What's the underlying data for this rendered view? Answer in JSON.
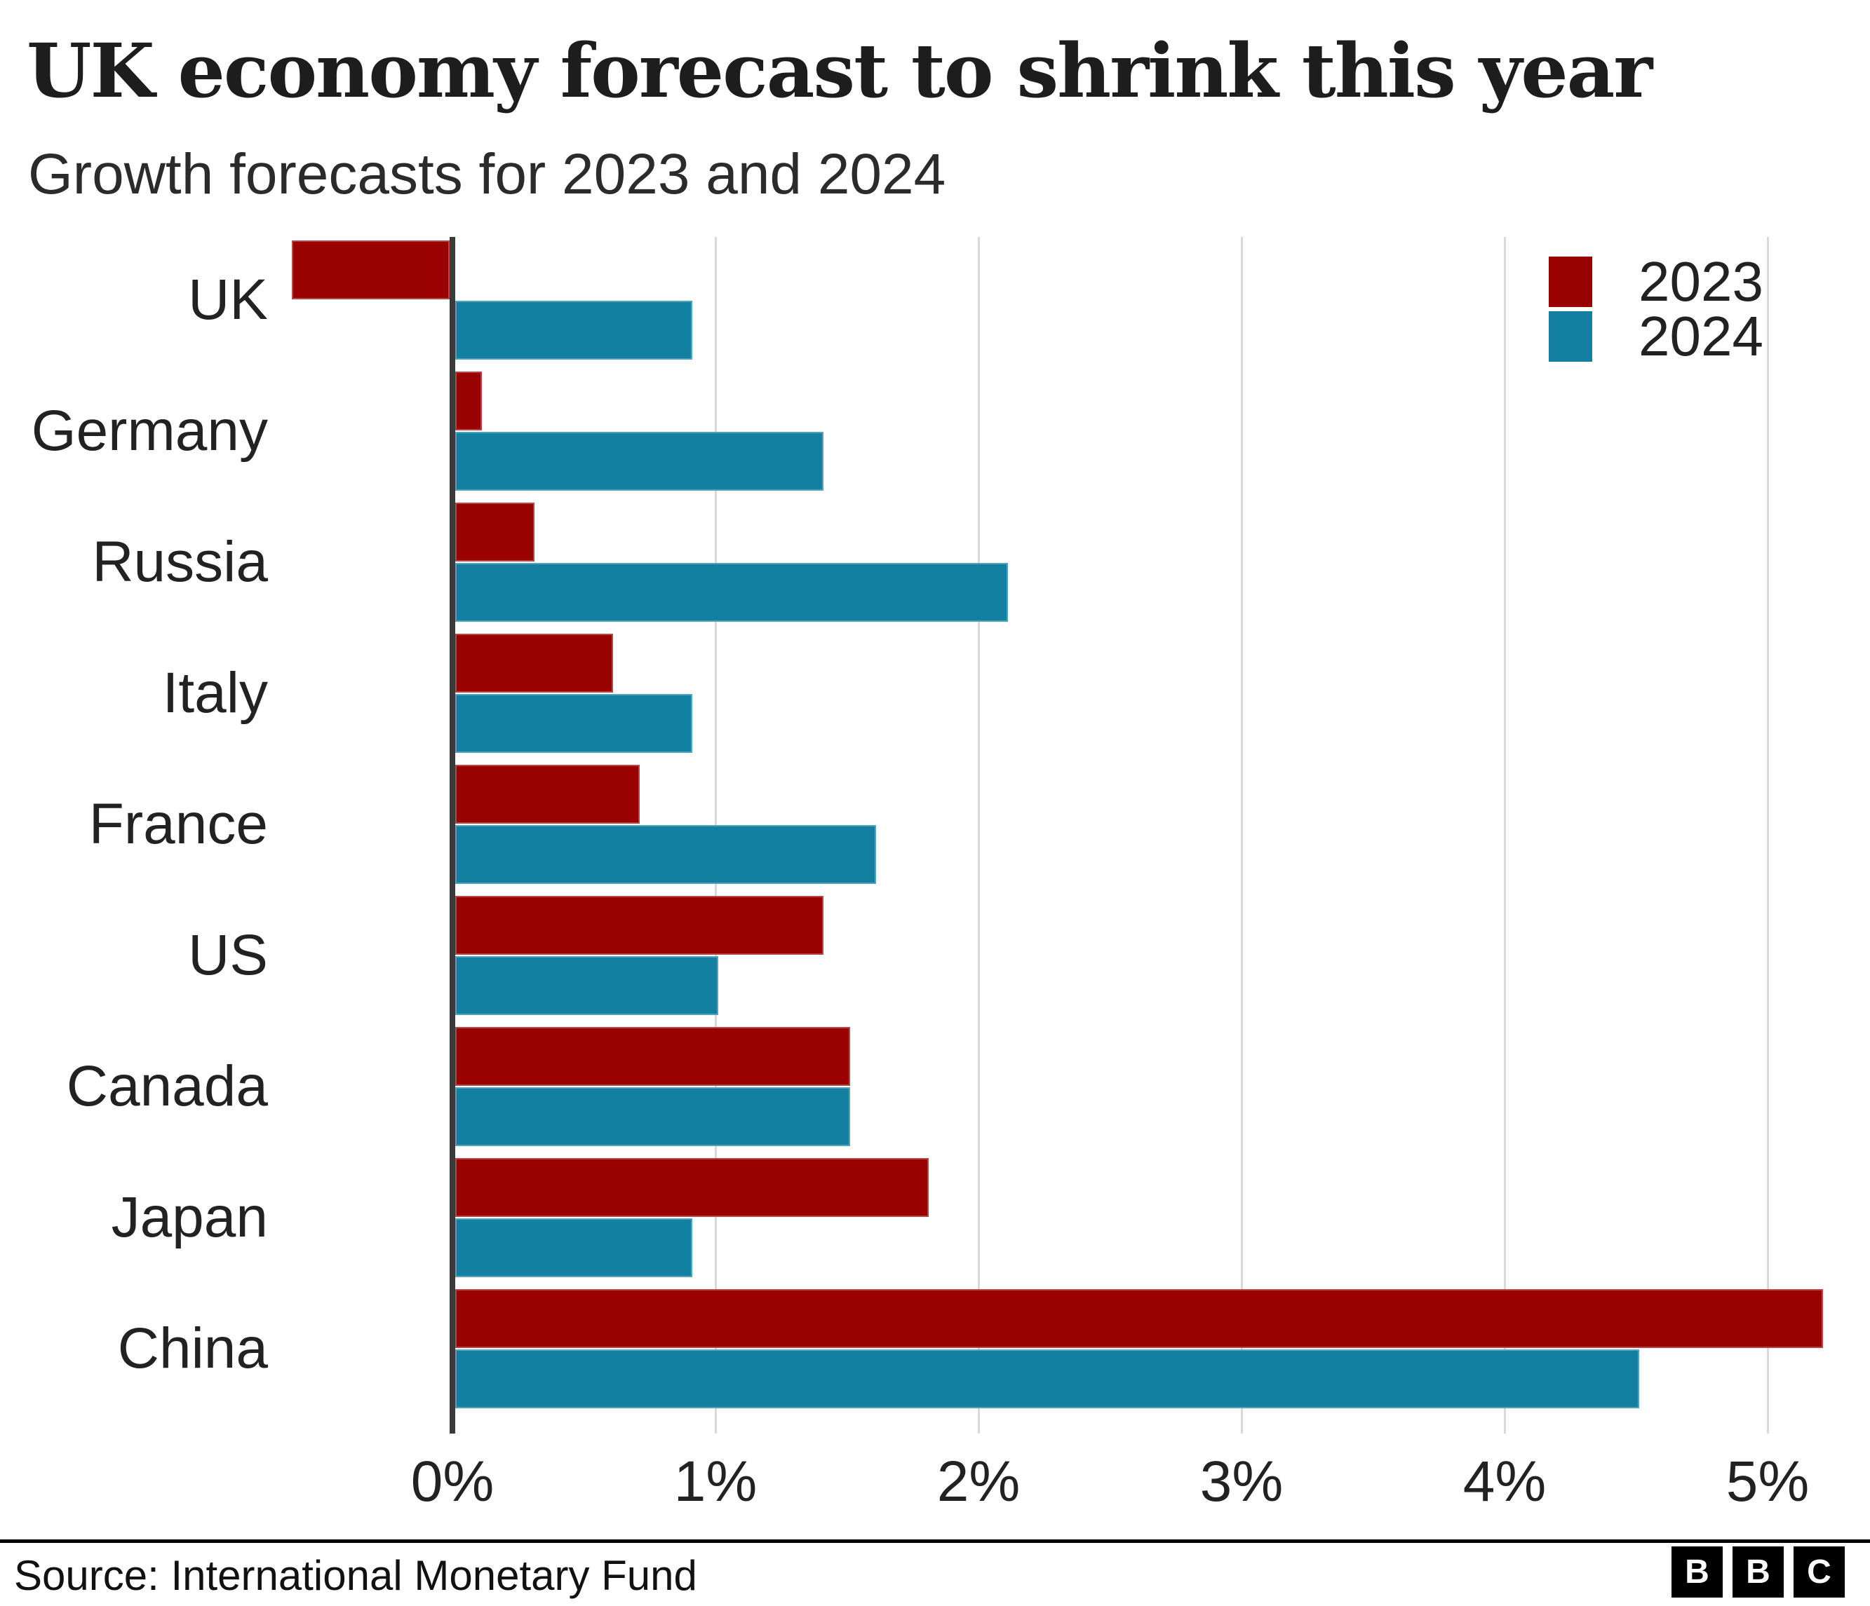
{
  "chart_data": {
    "type": "bar",
    "orientation": "horizontal",
    "title": "UK economy forecast to shrink this year",
    "subtitle": "Growth forecasts for 2023 and 2024",
    "categories": [
      "UK",
      "Germany",
      "Russia",
      "Italy",
      "France",
      "US",
      "Canada",
      "Japan",
      "China"
    ],
    "series": [
      {
        "name": "2023",
        "color": "#990000",
        "values": [
          -0.6,
          0.1,
          0.3,
          0.6,
          0.7,
          1.4,
          1.5,
          1.8,
          5.2
        ]
      },
      {
        "name": "2024",
        "color": "#1380a1",
        "values": [
          0.9,
          1.4,
          2.1,
          0.9,
          1.6,
          1.0,
          1.5,
          0.9,
          4.5
        ]
      }
    ],
    "value_unit": "%",
    "x_ticks": [
      {
        "value": 0,
        "label": "0%"
      },
      {
        "value": 1,
        "label": "1%"
      },
      {
        "value": 2,
        "label": "2%"
      },
      {
        "value": 3,
        "label": "3%"
      },
      {
        "value": 4,
        "label": "4%"
      },
      {
        "value": 5,
        "label": "5%"
      }
    ],
    "xlim": [
      -0.62,
      5.39
    ],
    "grid": "vertical-gridlines-on",
    "legend_position": "top-right",
    "colors": {
      "axis": "#3a3a3a",
      "gridline": "#d9d9d9",
      "text": "#222222"
    }
  },
  "footer": {
    "source": "Source: International Monetary Fund",
    "logo_letters": [
      "B",
      "B",
      "C"
    ]
  }
}
